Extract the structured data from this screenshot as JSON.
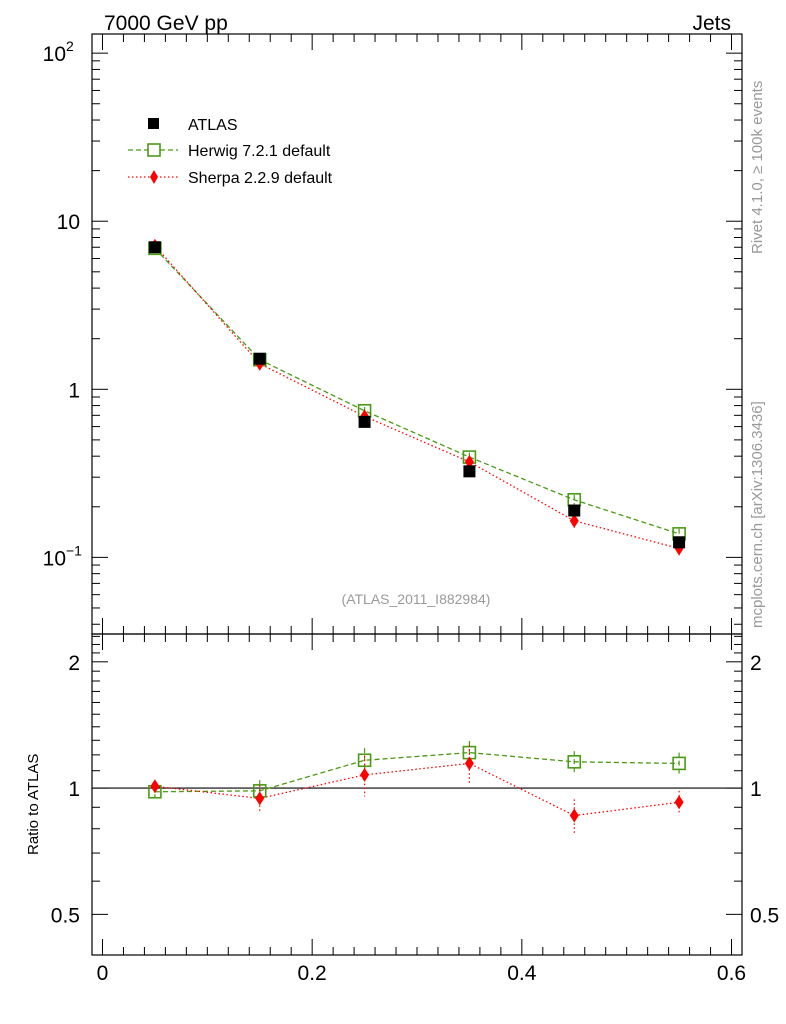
{
  "header": {
    "left_title": "7000 GeV pp",
    "right_title": "Jets"
  },
  "side_labels": {
    "rivet": "Rivet 4.1.0, ≥ 100k events",
    "mcplots": "mcplots.cern.ch [arXiv:1306.3436]"
  },
  "analysis_label": "(ATLAS_2011_I882984)",
  "ratio_ylabel": "Ratio to ATLAS",
  "chart_data": {
    "type": "scatter",
    "x_range": [
      -0.01,
      0.61
    ],
    "x_ticks": [
      {
        "value": 0,
        "label": "0"
      },
      {
        "value": 0.2,
        "label": "0.2"
      },
      {
        "value": 0.4,
        "label": "0.4"
      },
      {
        "value": 0.6,
        "label": "0.6"
      }
    ],
    "main": {
      "scale": "log",
      "ylim": [
        0.035,
        130
      ],
      "y_ticks": [
        {
          "value": 0.1,
          "label": "10",
          "sup": "−1"
        },
        {
          "value": 1,
          "label": "1",
          "sup": ""
        },
        {
          "value": 10,
          "label": "10",
          "sup": ""
        },
        {
          "value": 100,
          "label": "10",
          "sup": "2"
        }
      ]
    },
    "ratio": {
      "scale": "log",
      "ylim": [
        0.4,
        2.33
      ],
      "y_ticks": [
        {
          "value": 0.5,
          "label": "0.5"
        },
        {
          "value": 1,
          "label": "1"
        },
        {
          "value": 2,
          "label": "2"
        }
      ]
    },
    "x": [
      0.05,
      0.15,
      0.25,
      0.35,
      0.45,
      0.55
    ],
    "series": [
      {
        "name": "ATLAS",
        "color": "#000000",
        "marker": "square-filled",
        "values": [
          7.0,
          1.52,
          0.64,
          0.325,
          0.19,
          0.123
        ],
        "errors": [
          0.25,
          0.07,
          0.04,
          0.02,
          0.015,
          0.01
        ]
      },
      {
        "name": "Herwig 7.2.1 default",
        "color": "#4a9a13",
        "marker": "square-open",
        "line": "dashed",
        "values": [
          6.9,
          1.5,
          0.745,
          0.395,
          0.22,
          0.138
        ],
        "errors": [
          0.2,
          0.06,
          0.04,
          0.025,
          0.015,
          0.01
        ],
        "ratio": [
          0.98,
          0.985,
          1.165,
          1.215,
          1.155,
          1.145
        ],
        "ratio_errors": [
          0.03,
          0.06,
          0.08,
          0.08,
          0.07,
          0.07
        ]
      },
      {
        "name": "Sherpa 2.2.9 default",
        "color": "#ff0000",
        "marker": "diamond-filled",
        "line": "dotted",
        "values": [
          7.15,
          1.42,
          0.69,
          0.37,
          0.165,
          0.113
        ],
        "errors": [
          0.2,
          0.1,
          0.05,
          0.03,
          0.015,
          0.01
        ],
        "ratio": [
          1.01,
          0.945,
          1.075,
          1.145,
          0.86,
          0.925
        ],
        "ratio_errors": [
          0.03,
          0.07,
          0.12,
          0.12,
          0.08,
          0.06
        ]
      }
    ]
  }
}
